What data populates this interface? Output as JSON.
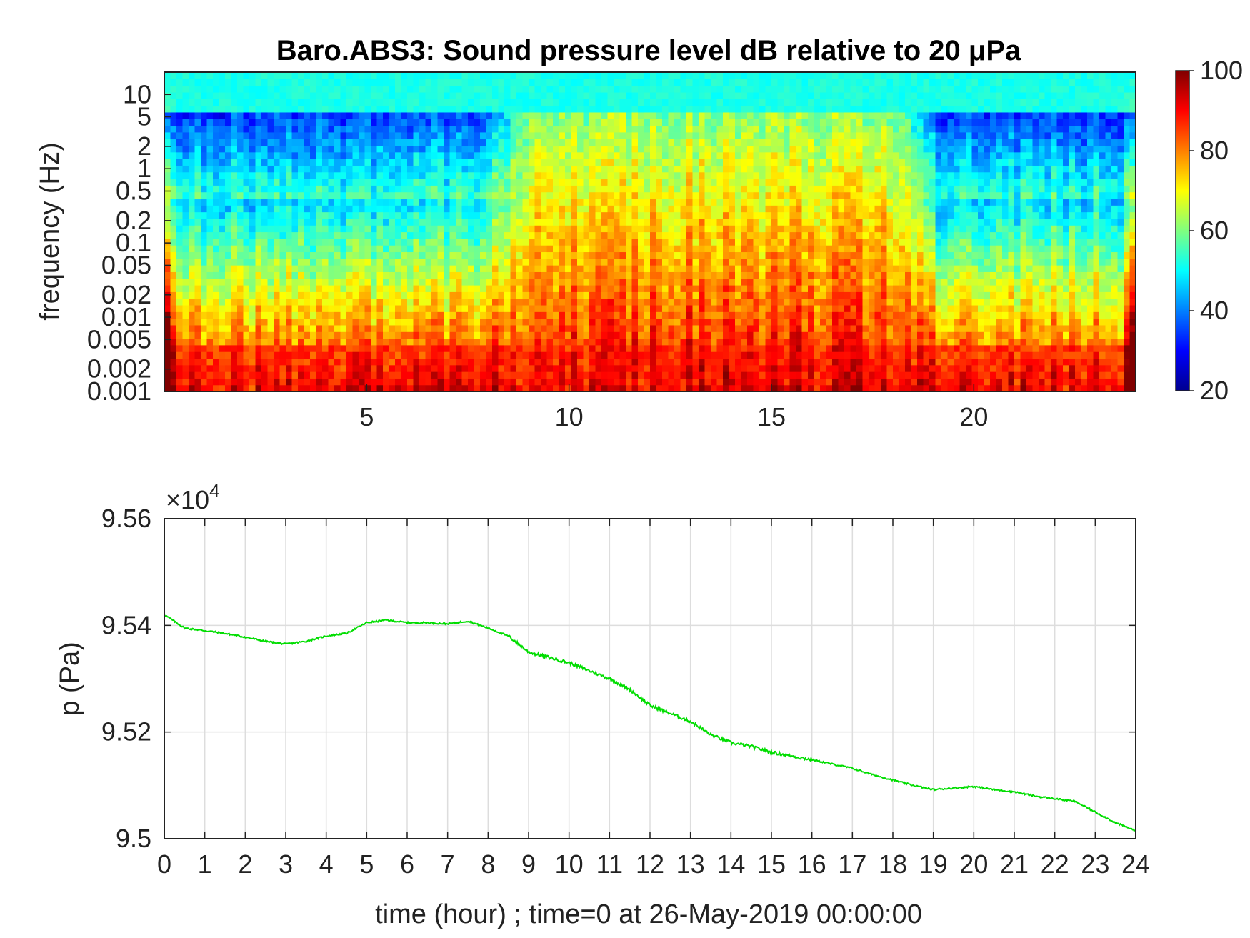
{
  "chart_data": [
    {
      "type": "heatmap",
      "title": "Baro.ABS3: Sound pressure level dB relative to 20 μPa",
      "ylabel": "frequency (Hz)",
      "xlabel": "",
      "xlim": [
        0,
        24
      ],
      "x_ticks": [
        "5",
        "10",
        "15",
        "20"
      ],
      "y_scale": "log",
      "ylim": [
        0.001,
        20
      ],
      "y_ticks": [
        "10",
        "5",
        "2",
        "1",
        "0.5",
        "0.2",
        "0.1",
        "0.05",
        "0.02",
        "0.01",
        "0.005",
        "0.002",
        "0.001"
      ],
      "colorbar": {
        "range": [
          20,
          100
        ],
        "ticks": [
          "100",
          "80",
          "60",
          "40",
          "20"
        ],
        "colormap": "jet"
      },
      "description_values": {
        "quiet_hours": [
          0,
          8
        ],
        "active_hours": [
          9,
          18.5
        ],
        "quiet_hours_evening": [
          19,
          24
        ],
        "low_freq_level_db": 85,
        "high_freq_level_db": 52
      }
    },
    {
      "type": "line",
      "title": "",
      "xlabel": "time (hour) ; time=0 at 26-May-2019 00:00:00",
      "ylabel": "p (Pa)",
      "y_multiplier": "×10^4",
      "multiplier_text": "×10",
      "multiplier_exp": "4",
      "xlim": [
        0,
        24
      ],
      "ylim": [
        9.5,
        9.56
      ],
      "x_ticks": [
        "0",
        "1",
        "2",
        "3",
        "4",
        "5",
        "6",
        "7",
        "8",
        "9",
        "10",
        "11",
        "12",
        "13",
        "14",
        "15",
        "16",
        "17",
        "18",
        "19",
        "20",
        "21",
        "22",
        "23",
        "24"
      ],
      "y_ticks": [
        "9.56",
        "9.54",
        "9.52",
        "9.5"
      ],
      "grid": true,
      "series": [
        {
          "color": "#00dd00",
          "x": [
            0,
            0.5,
            1,
            1.5,
            2,
            2.5,
            3,
            3.5,
            4,
            4.5,
            5,
            5.5,
            6,
            6.5,
            7,
            7.5,
            8,
            8.5,
            9,
            9.5,
            10,
            10.5,
            11,
            11.5,
            12,
            12.5,
            13,
            13.5,
            14,
            14.5,
            15,
            15.5,
            16,
            16.5,
            17,
            17.5,
            18,
            18.5,
            19,
            19.5,
            20,
            20.5,
            21,
            21.5,
            22,
            22.5,
            23,
            23.5,
            24
          ],
          "y": [
            9.542,
            9.5395,
            9.539,
            9.5385,
            9.5378,
            9.537,
            9.5365,
            9.537,
            9.538,
            9.5385,
            9.5405,
            9.541,
            9.5405,
            9.5405,
            9.5403,
            9.5408,
            9.5395,
            9.538,
            9.535,
            9.534,
            9.533,
            9.5315,
            9.53,
            9.528,
            9.525,
            9.5235,
            9.522,
            9.5195,
            9.518,
            9.5173,
            9.5162,
            9.5155,
            9.5148,
            9.514,
            9.5132,
            9.512,
            9.511,
            9.51,
            9.5092,
            9.5095,
            9.5098,
            9.5092,
            9.5088,
            9.508,
            9.5075,
            9.507,
            9.505,
            9.503,
            9.5015
          ]
        }
      ]
    }
  ]
}
